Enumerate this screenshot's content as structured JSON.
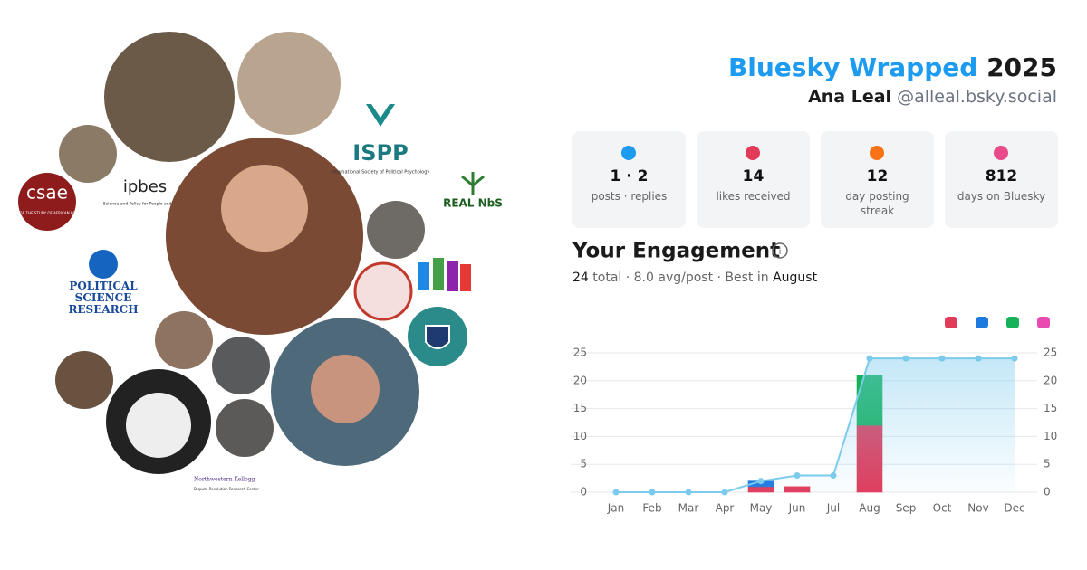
{
  "header": {
    "title": "Bluesky Wrapped",
    "year": "2025",
    "name": "Ana Leal",
    "handle": "@alleal.bsky.social"
  },
  "stats": [
    {
      "value": "1 · 2",
      "label": "posts · replies"
    },
    {
      "value": "14",
      "label": "likes received"
    },
    {
      "value": "12",
      "label": "day posting streak"
    },
    {
      "value": "812",
      "label": "days on Bluesky"
    }
  ],
  "engagement": {
    "title": "Your Engagement",
    "total": "24",
    "summary": "total · 8.0 avg/post · Best in",
    "best": "August"
  },
  "logos": {
    "csae": "csae",
    "csae_sub": "CENTRE FOR THE STUDY OF AFRICAN ECONOMIES",
    "ipbes": "ipbes",
    "ipbes_sub": "Science and Policy for People and Nature",
    "ispp": "ISPP",
    "ispp_sub": "International Society of Political Psychology",
    "nbs": "REAL NbS",
    "psr": "POLITICAL SCIENCE RESEARCH",
    "kellogg": "Northwestern Kellogg",
    "kellogg_sub": "Dispute Resolution Research Center"
  },
  "chart_data": {
    "type": "bar",
    "stacked": true,
    "categories": [
      "Jan",
      "Feb",
      "Mar",
      "Apr",
      "May",
      "Jun",
      "Jul",
      "Aug",
      "Sep",
      "Oct",
      "Nov",
      "Dec"
    ],
    "series": [
      {
        "color": "#e23b5a",
        "values": [
          0,
          0,
          0,
          0,
          1,
          1,
          0,
          12,
          0,
          0,
          0,
          0
        ]
      },
      {
        "color": "#1f7ae0",
        "values": [
          0,
          0,
          0,
          0,
          1,
          0,
          0,
          0,
          0,
          0,
          0,
          0
        ]
      },
      {
        "color": "#16b25a",
        "values": [
          0,
          0,
          0,
          0,
          0,
          0,
          0,
          9,
          0,
          0,
          0,
          0
        ]
      },
      {
        "color": "#e94bb0",
        "values": [
          0,
          0,
          0,
          0,
          0,
          0,
          0,
          0,
          0,
          0,
          0,
          0
        ]
      },
      {
        "type": "line",
        "axis": "y2",
        "color": "#7ccbed",
        "values": [
          0,
          0,
          0,
          0,
          2,
          3,
          3,
          24,
          24,
          24,
          24,
          24
        ]
      }
    ],
    "ylim": [
      0,
      25
    ],
    "yticks": [
      0,
      5,
      10,
      15,
      20,
      25
    ],
    "y2lim": [
      0,
      25
    ],
    "y2ticks": [
      0,
      5,
      10,
      15,
      20,
      25
    ],
    "grid": true
  }
}
